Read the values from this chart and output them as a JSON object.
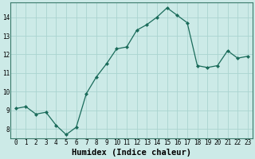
{
  "x": [
    0,
    1,
    2,
    3,
    4,
    5,
    6,
    7,
    8,
    9,
    10,
    11,
    12,
    13,
    14,
    15,
    16,
    17,
    18,
    19,
    20,
    21,
    22,
    23
  ],
  "y": [
    9.1,
    9.2,
    8.8,
    8.9,
    8.2,
    7.7,
    8.1,
    9.9,
    10.8,
    11.5,
    12.3,
    12.4,
    13.3,
    13.6,
    14.0,
    14.5,
    14.1,
    13.7,
    11.4,
    11.3,
    11.4,
    12.2,
    11.8,
    11.9
  ],
  "xlabel": "Humidex (Indice chaleur)",
  "ylabel": "",
  "ylim": [
    7.5,
    14.8
  ],
  "xlim": [
    -0.5,
    23.5
  ],
  "line_color": "#1a6b5a",
  "marker_color": "#1a6b5a",
  "bg_color": "#cceae7",
  "grid_color": "#aad4d0",
  "tick_fontsize": 5.5,
  "label_fontsize": 7.5
}
